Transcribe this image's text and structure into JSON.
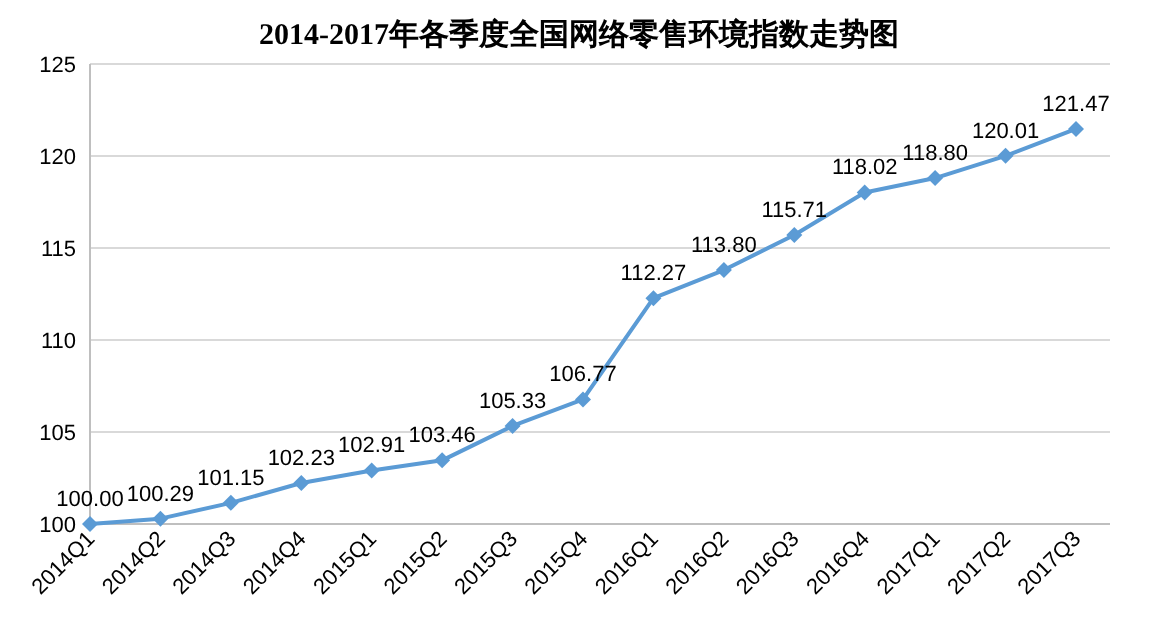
{
  "chart_data": {
    "type": "line",
    "title": "2014-2017年各季度全国网络零售环境指数走势图",
    "categories": [
      "2014Q1",
      "2014Q2",
      "2014Q3",
      "2014Q4",
      "2015Q1",
      "2015Q2",
      "2015Q3",
      "2015Q4",
      "2016Q1",
      "2016Q2",
      "2016Q3",
      "2016Q4",
      "2017Q1",
      "2017Q2",
      "2017Q3"
    ],
    "series": [
      {
        "color": "#5b9bd5",
        "values": [
          100.0,
          100.29,
          101.15,
          102.23,
          102.91,
          103.46,
          105.33,
          106.77,
          112.27,
          113.8,
          115.71,
          118.02,
          118.8,
          120.01,
          121.47
        ],
        "value_labels": [
          "100.00",
          "100.29",
          "101.15",
          "102.23",
          "102.91",
          "103.46",
          "105.33",
          "106.77",
          "112.27",
          "113.80",
          "115.71",
          "118.02",
          "118.80",
          "120.01",
          "121.47"
        ]
      }
    ],
    "ylim": [
      100,
      125
    ],
    "yticks": [
      100,
      105,
      110,
      115,
      120,
      125
    ],
    "grid": "y",
    "marker": "diamond",
    "line_style": "solid"
  }
}
